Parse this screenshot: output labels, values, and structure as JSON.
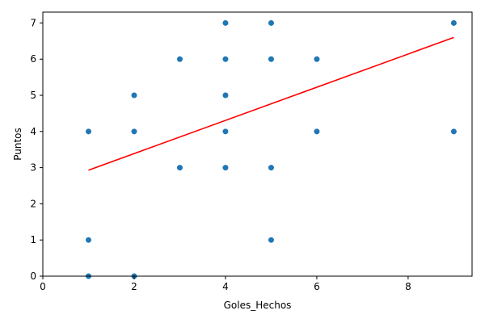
{
  "chart_data": {
    "type": "scatter",
    "title": "",
    "xlabel": "Goles_Hechos",
    "ylabel": "Puntos",
    "xlim": [
      0,
      9.4
    ],
    "ylim": [
      0,
      7.3
    ],
    "xticks": [
      0,
      2,
      4,
      6,
      8
    ],
    "yticks": [
      0,
      1,
      2,
      3,
      4,
      5,
      6,
      7
    ],
    "grid": false,
    "legend": "none",
    "colors": {
      "points": "#1f77b4",
      "trend_line": "#ff0000",
      "axes": "#000000"
    },
    "points": [
      {
        "x": 1,
        "y": 4
      },
      {
        "x": 1,
        "y": 1
      },
      {
        "x": 1,
        "y": 0
      },
      {
        "x": 2,
        "y": 5
      },
      {
        "x": 2,
        "y": 4
      },
      {
        "x": 2,
        "y": 0
      },
      {
        "x": 3,
        "y": 6
      },
      {
        "x": 3,
        "y": 3
      },
      {
        "x": 4,
        "y": 7
      },
      {
        "x": 4,
        "y": 6
      },
      {
        "x": 4,
        "y": 5
      },
      {
        "x": 4,
        "y": 4
      },
      {
        "x": 4,
        "y": 3
      },
      {
        "x": 5,
        "y": 7
      },
      {
        "x": 5,
        "y": 6
      },
      {
        "x": 5,
        "y": 3
      },
      {
        "x": 5,
        "y": 1
      },
      {
        "x": 6,
        "y": 6
      },
      {
        "x": 6,
        "y": 4
      },
      {
        "x": 9,
        "y": 7
      },
      {
        "x": 9,
        "y": 4
      }
    ],
    "trend_line": {
      "x": [
        1,
        9
      ],
      "y": [
        2.93,
        6.6
      ]
    }
  }
}
